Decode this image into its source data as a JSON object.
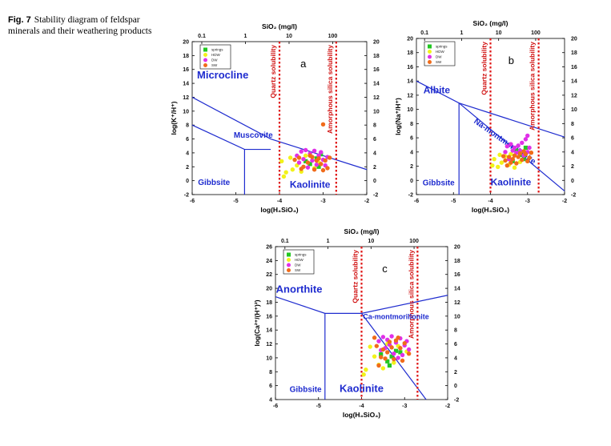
{
  "caption": {
    "fig_label": "Fig. 7",
    "text": "Stability diagram of feldspar minerals and their weathering products"
  },
  "colors": {
    "field_lines": "#1f2ccf",
    "solubility_lines": "#e01818",
    "springs": "#22c722",
    "HDW": "#f2f21a",
    "DW": "#e030e8",
    "SW": "#f06b1a"
  },
  "chart_data": [
    {
      "id": "a",
      "type": "scatter",
      "panel_label": "a",
      "top_axis_label": "SiO₂ (mg/l)",
      "top_ticks": [
        {
          "label": "0.1",
          "x": -5.78
        },
        {
          "label": "1",
          "x": -4.78
        },
        {
          "label": "10",
          "x": -3.78
        },
        {
          "label": "100",
          "x": -2.78
        }
      ],
      "xlabel": "log(H₄SiO₄)",
      "ylabel": "log(K⁺/H⁺)",
      "xlim": [
        -6,
        -2
      ],
      "ylim": [
        -2,
        20
      ],
      "xticks": [
        -6,
        -5,
        -4,
        -3,
        -2
      ],
      "yticks": [
        -2,
        0,
        2,
        4,
        6,
        8,
        10,
        12,
        14,
        16,
        18,
        20
      ],
      "right_yticks": [
        -2,
        0,
        2,
        4,
        6,
        8,
        10,
        12,
        14,
        16,
        18,
        20
      ],
      "legend": [
        "springs",
        "HDW",
        "DW",
        "SW"
      ],
      "solubility_lines": [
        {
          "label": "Quartz solubility",
          "x": -4.0
        },
        {
          "label": "Amorphous silica solubility",
          "x": -2.7
        }
      ],
      "boundaries": [
        [
          [
            -6,
            12.0
          ],
          [
            -4.2,
            6.0
          ],
          [
            -2.0,
            1.6
          ]
        ],
        [
          [
            -6,
            8.0
          ],
          [
            -4.8,
            4.5
          ],
          [
            -4.2,
            4.5
          ]
        ],
        [
          [
            -4.8,
            4.5
          ],
          [
            -4.8,
            -2
          ]
        ]
      ],
      "fields": [
        {
          "label": "Microcline",
          "x": -5.3,
          "y": 14.7,
          "size": 13
        },
        {
          "label": "Muscovite",
          "x": -4.6,
          "y": 6.2,
          "size": 10
        },
        {
          "label": "Gibbsite",
          "x": -5.5,
          "y": -0.6,
          "size": 10
        },
        {
          "label": "Kaolinite",
          "x": -3.3,
          "y": -1.0,
          "size": 12
        }
      ],
      "series": [
        {
          "name": "springs",
          "points": [
            [
              -3.05,
              3.8
            ],
            [
              -3.15,
              3.2
            ],
            [
              -3.3,
              2.4
            ],
            [
              -3.4,
              2.8
            ],
            [
              -3.1,
              2.0
            ]
          ]
        },
        {
          "name": "HDW",
          "points": [
            [
              -3.9,
              0.6
            ],
            [
              -3.85,
              1.2
            ],
            [
              -3.95,
              2.8
            ],
            [
              -3.7,
              1.6
            ],
            [
              -3.6,
              2.2
            ],
            [
              -3.75,
              3.3
            ],
            [
              -3.5,
              1.3
            ],
            [
              -3.2,
              1.8
            ],
            [
              -3.4,
              3.6
            ],
            [
              -3.1,
              2.6
            ]
          ]
        },
        {
          "name": "DW",
          "points": [
            [
              -3.6,
              3.6
            ],
            [
              -3.5,
              4.2
            ],
            [
              -3.4,
              4.4
            ],
            [
              -3.3,
              3.9
            ],
            [
              -3.2,
              4.3
            ],
            [
              -3.1,
              3.6
            ],
            [
              -3.0,
              3.0
            ],
            [
              -2.9,
              3.4
            ],
            [
              -3.25,
              2.9
            ],
            [
              -3.45,
              3.1
            ],
            [
              -3.55,
              2.6
            ],
            [
              -3.35,
              1.9
            ],
            [
              -3.15,
              2.3
            ],
            [
              -2.95,
              2.2
            ],
            [
              -3.05,
              4.1
            ]
          ]
        },
        {
          "name": "SW",
          "points": [
            [
              -3.0,
              8.1
            ],
            [
              -3.65,
              3.0
            ],
            [
              -3.55,
              3.3
            ],
            [
              -3.45,
              2.0
            ],
            [
              -3.35,
              2.6
            ],
            [
              -3.25,
              3.4
            ],
            [
              -3.15,
              2.9
            ],
            [
              -3.05,
              2.4
            ],
            [
              -2.95,
              2.9
            ],
            [
              -2.85,
              3.3
            ],
            [
              -3.2,
              1.6
            ],
            [
              -3.3,
              3.6
            ],
            [
              -2.9,
              1.8
            ],
            [
              -3.5,
              1.7
            ],
            [
              -3.1,
              3.2
            ],
            [
              -3.0,
              1.5
            ]
          ]
        }
      ]
    },
    {
      "id": "b",
      "type": "scatter",
      "panel_label": "b",
      "top_axis_label": "SiO₂ (mg/l)",
      "top_ticks": [
        {
          "label": "0.1",
          "x": -5.78
        },
        {
          "label": "1",
          "x": -4.78
        },
        {
          "label": "10",
          "x": -3.78
        },
        {
          "label": "100",
          "x": -2.78
        }
      ],
      "xlabel": "log(H₄SiO₄)",
      "ylabel": "log(Na⁺/H⁺)",
      "xlim": [
        -6,
        -2
      ],
      "ylim": [
        -2,
        20
      ],
      "xticks": [
        -6,
        -5,
        -4,
        -3,
        -2
      ],
      "yticks": [
        -2,
        0,
        2,
        4,
        6,
        8,
        10,
        12,
        14,
        16,
        18,
        20
      ],
      "right_yticks": [
        -2,
        0,
        2,
        4,
        6,
        8,
        10,
        12,
        14,
        16,
        18,
        20
      ],
      "legend": [
        "springs",
        "HDW",
        "DW",
        "SW"
      ],
      "solubility_lines": [
        {
          "label": "Quartz solubility",
          "x": -4.0
        },
        {
          "label": "Amorphous silica solubility",
          "x": -2.7
        }
      ],
      "boundaries": [
        [
          [
            -6,
            14.0
          ],
          [
            -4.85,
            10.9
          ],
          [
            -2.0,
            6.1
          ]
        ],
        [
          [
            -4.85,
            10.9
          ],
          [
            -2.0,
            -1.5
          ]
        ],
        [
          [
            -4.85,
            10.9
          ],
          [
            -4.85,
            -2
          ]
        ]
      ],
      "fields": [
        {
          "label": "Albite",
          "x": -5.45,
          "y": 12.3,
          "size": 12
        },
        {
          "label": "Na-montmorillonite",
          "x": -3.65,
          "y": 5.2,
          "size": 10,
          "rotate": 35
        },
        {
          "label": "Gibbsite",
          "x": -5.4,
          "y": -0.7,
          "size": 10
        },
        {
          "label": "Kaolinite",
          "x": -3.45,
          "y": -0.7,
          "size": 12
        }
      ],
      "series": [
        {
          "name": "springs",
          "points": [
            [
              -3.2,
              3.6
            ],
            [
              -3.3,
              4.2
            ],
            [
              -3.1,
              3.0
            ],
            [
              -3.4,
              2.7
            ],
            [
              -3.05,
              4.6
            ]
          ]
        },
        {
          "name": "HDW",
          "points": [
            [
              -3.95,
              2.1
            ],
            [
              -3.9,
              3.0
            ],
            [
              -3.7,
              2.5
            ],
            [
              -3.8,
              1.9
            ],
            [
              -3.6,
              3.4
            ],
            [
              -3.5,
              2.2
            ],
            [
              -3.35,
              1.8
            ],
            [
              -3.45,
              3.7
            ],
            [
              -3.2,
              2.6
            ],
            [
              -3.75,
              3.6
            ]
          ]
        },
        {
          "name": "DW",
          "points": [
            [
              -3.55,
              4.8
            ],
            [
              -3.45,
              5.1
            ],
            [
              -3.35,
              4.6
            ],
            [
              -3.25,
              4.9
            ],
            [
              -3.15,
              5.3
            ],
            [
              -3.05,
              5.8
            ],
            [
              -3.0,
              4.0
            ],
            [
              -2.95,
              4.6
            ],
            [
              -3.3,
              3.9
            ],
            [
              -3.4,
              4.2
            ],
            [
              -3.6,
              4.0
            ],
            [
              -3.2,
              4.2
            ],
            [
              -3.1,
              3.5
            ],
            [
              -3.5,
              3.0
            ],
            [
              -3.0,
              6.3
            ]
          ]
        },
        {
          "name": "SW",
          "points": [
            [
              -3.6,
              2.8
            ],
            [
              -3.5,
              3.3
            ],
            [
              -3.4,
              3.0
            ],
            [
              -3.3,
              2.4
            ],
            [
              -3.25,
              3.3
            ],
            [
              -3.15,
              2.9
            ],
            [
              -3.05,
              3.7
            ],
            [
              -2.95,
              3.2
            ],
            [
              -3.1,
              4.1
            ],
            [
              -3.2,
              3.8
            ],
            [
              -3.35,
              3.5
            ],
            [
              -3.45,
              2.5
            ],
            [
              -3.0,
              2.7
            ],
            [
              -2.9,
              3.9
            ],
            [
              -3.55,
              2.1
            ],
            [
              -3.65,
              3.4
            ]
          ]
        }
      ]
    },
    {
      "id": "c",
      "type": "scatter",
      "panel_label": "c",
      "top_axis_label": "SiO₂ (mg/l)",
      "top_ticks": [
        {
          "label": "0.1",
          "x": -5.78
        },
        {
          "label": "1",
          "x": -4.78
        },
        {
          "label": "10",
          "x": -3.78
        },
        {
          "label": "100",
          "x": -2.78
        }
      ],
      "xlabel": "log(H₄SiO₄)",
      "ylabel": "log(Ca²⁺/(H⁺)²)",
      "xlim": [
        -6,
        -2
      ],
      "ylim": [
        4,
        26
      ],
      "xticks": [
        -6,
        -5,
        -4,
        -3,
        -2
      ],
      "yticks": [
        4,
        6,
        8,
        10,
        12,
        14,
        16,
        18,
        20,
        22,
        24,
        26
      ],
      "right_yticks": [
        -2,
        0,
        2,
        4,
        6,
        8,
        10,
        12,
        14,
        16,
        18,
        20
      ],
      "legend": [
        "springs",
        "HDW",
        "DW",
        "SW"
      ],
      "solubility_lines": [
        {
          "label": "Quartz solubility",
          "x": -4.0
        },
        {
          "label": "Amorphous silica solubility",
          "x": -2.7
        }
      ],
      "boundaries": [
        [
          [
            -6,
            18.8
          ],
          [
            -4.85,
            16.4
          ],
          [
            -4.0,
            16.4
          ],
          [
            -2.0,
            19.0
          ]
        ],
        [
          [
            -4.85,
            16.4
          ],
          [
            -4.85,
            4
          ]
        ],
        [
          [
            -4.0,
            16.4
          ],
          [
            -2.5,
            4
          ]
        ]
      ],
      "fields": [
        {
          "label": "Anorthite",
          "x": -5.45,
          "y": 19.4,
          "size": 13
        },
        {
          "label": "Ca-montmorillonite",
          "x": -3.2,
          "y": 15.6,
          "size": 9
        },
        {
          "label": "Gibbsite",
          "x": -5.3,
          "y": 5.1,
          "size": 10
        },
        {
          "label": "Kaolinite",
          "x": -4.0,
          "y": 5.1,
          "size": 13
        }
      ],
      "series": [
        {
          "name": "springs",
          "points": [
            [
              -3.3,
              10.2
            ],
            [
              -3.4,
              9.5
            ],
            [
              -3.2,
              11.0
            ],
            [
              -3.55,
              10.5
            ],
            [
              -3.1,
              10.8
            ],
            [
              -3.35,
              8.9
            ]
          ]
        },
        {
          "name": "HDW",
          "points": [
            [
              -3.95,
              7.6
            ],
            [
              -3.9,
              8.3
            ],
            [
              -3.7,
              10.2
            ],
            [
              -3.6,
              9.0
            ],
            [
              -3.8,
              11.6
            ],
            [
              -3.5,
              8.5
            ],
            [
              -3.4,
              12.0
            ],
            [
              -3.25,
              9.3
            ],
            [
              -3.15,
              11.7
            ],
            [
              -2.95,
              10.9
            ]
          ]
        },
        {
          "name": "DW",
          "points": [
            [
              -3.6,
              12.4
            ],
            [
              -3.5,
              13.0
            ],
            [
              -3.4,
              12.6
            ],
            [
              -3.3,
              13.1
            ],
            [
              -3.2,
              12.2
            ],
            [
              -3.1,
              12.8
            ],
            [
              -3.0,
              11.8
            ],
            [
              -2.95,
              12.4
            ],
            [
              -3.45,
              11.4
            ],
            [
              -3.35,
              11.9
            ],
            [
              -3.25,
              10.6
            ],
            [
              -3.15,
              10.0
            ],
            [
              -3.05,
              10.4
            ],
            [
              -3.55,
              11.1
            ],
            [
              -2.9,
              11.2
            ]
          ]
        },
        {
          "name": "SW",
          "points": [
            [
              -3.7,
              12.9
            ],
            [
              -3.65,
              11.7
            ],
            [
              -3.5,
              11.2
            ],
            [
              -3.4,
              10.8
            ],
            [
              -3.3,
              11.5
            ],
            [
              -3.2,
              12.5
            ],
            [
              -3.1,
              11.4
            ],
            [
              -3.0,
              12.1
            ],
            [
              -2.9,
              10.6
            ],
            [
              -3.55,
              10.1
            ],
            [
              -3.45,
              9.9
            ],
            [
              -3.25,
              9.8
            ],
            [
              -3.15,
              12.9
            ],
            [
              -3.05,
              9.6
            ],
            [
              -3.35,
              12.3
            ],
            [
              -3.6,
              8.9
            ]
          ]
        }
      ]
    }
  ]
}
